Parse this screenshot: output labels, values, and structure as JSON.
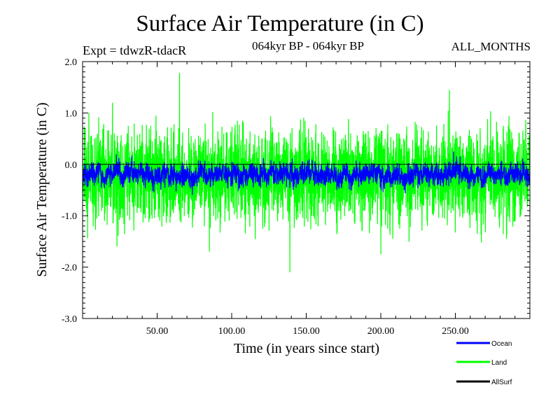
{
  "header": {
    "title": "Surface Air Temperature (in C)",
    "expt": "Expt = tdwzR-tdacR",
    "period": "064kyr BP - 064kyr BP",
    "months": "ALL_MONTHS"
  },
  "chart_data": {
    "type": "line",
    "title": "Surface Air Temperature (in C)",
    "xlabel": "Time (in years since start)",
    "ylabel": "Surface Air Temperature (in C)",
    "xlim": [
      0,
      300
    ],
    "ylim": [
      -3.0,
      2.0
    ],
    "xticks": [
      50,
      100,
      150,
      200,
      250
    ],
    "xtick_labels": [
      "50.00",
      "100.00",
      "150.00",
      "200.00",
      "250.00"
    ],
    "yticks": [
      2.0,
      1.0,
      0.0,
      -1.0,
      -2.0,
      -3.0
    ],
    "ytick_labels": [
      "2.0",
      "1.0",
      "0.0",
      "-1.0",
      "-2.0",
      "-3.0"
    ],
    "grid": false,
    "zero_reference_line": true,
    "legend_position": "bottom-right, below plot",
    "series": [
      {
        "name": "Land",
        "color": "#00ff00",
        "description": "monthly land anomaly, noisy, range about -2.1 to 1.8",
        "mean": -0.15,
        "std": 0.42,
        "approx_min": -2.1,
        "approx_max": 1.78,
        "notable_extremes": [
          {
            "x": 65,
            "y": 1.78
          },
          {
            "x": 85,
            "y": -1.7
          },
          {
            "x": 139,
            "y": -2.1
          },
          {
            "x": 246,
            "y": 1.45
          },
          {
            "x": 23,
            "y": -1.6
          },
          {
            "x": 20,
            "y": 1.2
          },
          {
            "x": 200,
            "y": -1.75
          }
        ]
      },
      {
        "name": "Ocean",
        "color": "#0000ff",
        "description": "monthly ocean anomaly, range about -0.7 to 0.45",
        "mean": -0.18,
        "std": 0.16,
        "approx_min": -0.7,
        "approx_max": 0.45
      },
      {
        "name": "AllSurf",
        "color": "#000000",
        "description": "legend entry only; not visibly drawn",
        "values": []
      }
    ]
  }
}
